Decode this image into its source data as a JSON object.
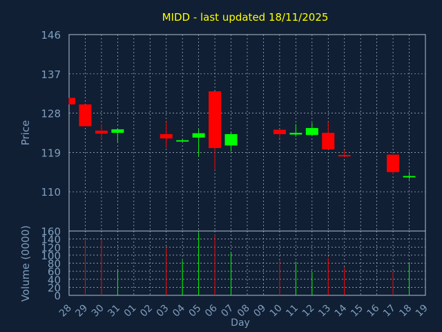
{
  "title": "MIDD - last updated 18/11/2025",
  "colors": {
    "background": "#101f33",
    "title": "#ffff00",
    "axis_text": "#7f9fbf",
    "grid": "#b4c3cf",
    "up": "#00ff00",
    "down": "#ff0000"
  },
  "chart_data": [
    {
      "type": "candlestick",
      "title": "MIDD - last updated 18/11/2025",
      "ylabel": "Price",
      "ylim": [
        101,
        146
      ],
      "yticks": [
        110,
        119,
        128,
        137,
        146
      ],
      "grid": true,
      "categories": [
        "28",
        "29",
        "30",
        "31",
        "01",
        "02",
        "03",
        "04",
        "05",
        "06",
        "07",
        "08",
        "09",
        "10",
        "11",
        "12",
        "13",
        "14",
        "15",
        "16",
        "17",
        "18",
        "19"
      ],
      "series": [
        {
          "day": "28",
          "open": 131.5,
          "high": 131.5,
          "close": 130.0,
          "low": 130.0
        },
        {
          "day": "29",
          "open": 130.0,
          "high": 130.0,
          "close": 125.0,
          "low": 125.0
        },
        {
          "day": "30",
          "open": 124.0,
          "high": 125.5,
          "close": 123.3,
          "low": 122.0
        },
        {
          "day": "31",
          "open": 123.5,
          "high": 124.6,
          "close": 124.3,
          "low": 121.3
        },
        {
          "day": "03",
          "open": 123.2,
          "high": 126.0,
          "close": 122.2,
          "low": 120.0
        },
        {
          "day": "04",
          "open": 121.6,
          "high": 122.0,
          "close": 121.8,
          "low": 121.6
        },
        {
          "day": "05",
          "open": 122.4,
          "high": 124.4,
          "close": 123.4,
          "low": 118.0
        },
        {
          "day": "06",
          "open": 133.0,
          "high": 133.0,
          "close": 120.0,
          "low": 115.0
        },
        {
          "day": "07",
          "open": 120.6,
          "high": 123.5,
          "close": 123.2,
          "low": 119.2
        },
        {
          "day": "10",
          "open": 124.2,
          "high": 124.2,
          "close": 123.2,
          "low": 122.2
        },
        {
          "day": "11",
          "open": 123.1,
          "high": 125.5,
          "close": 123.5,
          "low": 122.6
        },
        {
          "day": "12",
          "open": 123.0,
          "high": 125.8,
          "close": 124.6,
          "low": 122.8
        },
        {
          "day": "13",
          "open": 123.5,
          "high": 126.0,
          "close": 119.7,
          "low": 119.7
        },
        {
          "day": "14",
          "open": 118.4,
          "high": 119.5,
          "close": 118.2,
          "low": 118.0
        },
        {
          "day": "17",
          "open": 118.5,
          "high": 118.5,
          "close": 114.5,
          "low": 114.0
        },
        {
          "day": "18",
          "open": 113.3,
          "high": 114.6,
          "close": 113.6,
          "low": 112.8
        }
      ]
    },
    {
      "type": "bar",
      "ylabel": "Volume (0000)",
      "xlabel": "Day",
      "ylim": [
        0,
        160
      ],
      "yticks": [
        0,
        20,
        40,
        60,
        80,
        100,
        120,
        140,
        160
      ],
      "grid": true,
      "categories": [
        "28",
        "29",
        "30",
        "31",
        "01",
        "02",
        "03",
        "04",
        "05",
        "06",
        "07",
        "08",
        "09",
        "10",
        "11",
        "12",
        "13",
        "14",
        "15",
        "16",
        "17",
        "18",
        "19"
      ],
      "values": [
        {
          "day": "29",
          "volume": 138,
          "dir": "down"
        },
        {
          "day": "30",
          "volume": 140,
          "dir": "down"
        },
        {
          "day": "31",
          "volume": 63,
          "dir": "up"
        },
        {
          "day": "03",
          "volume": 118,
          "dir": "down"
        },
        {
          "day": "04",
          "volume": 87,
          "dir": "up"
        },
        {
          "day": "05",
          "volume": 156,
          "dir": "up"
        },
        {
          "day": "06",
          "volume": 150,
          "dir": "down"
        },
        {
          "day": "07",
          "volume": 107,
          "dir": "up"
        },
        {
          "day": "10",
          "volume": 87,
          "dir": "down"
        },
        {
          "day": "11",
          "volume": 84,
          "dir": "up"
        },
        {
          "day": "12",
          "volume": 58,
          "dir": "up"
        },
        {
          "day": "13",
          "volume": 93,
          "dir": "down"
        },
        {
          "day": "14",
          "volume": 70,
          "dir": "down"
        },
        {
          "day": "17",
          "volume": 60,
          "dir": "down"
        },
        {
          "day": "18",
          "volume": 80,
          "dir": "up"
        }
      ]
    }
  ]
}
